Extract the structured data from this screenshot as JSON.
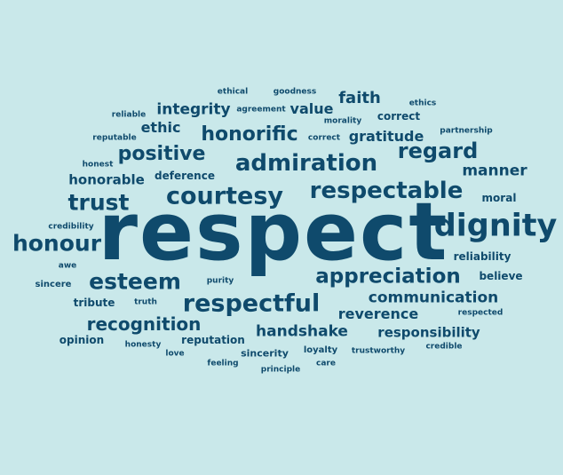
{
  "colors": {
    "background": "#c9e8ea",
    "text": "#0f4a6c"
  },
  "cloud": {
    "w": {
      "respect": "respect",
      "dignity": "dignity",
      "honour": "honour",
      "courtesy": "courtesy",
      "respectable": "respectable",
      "admiration": "admiration",
      "respectful": "respectful",
      "appreciation": "appreciation",
      "esteem": "esteem",
      "trust": "trust",
      "regard": "regard",
      "honorific": "honorific",
      "positive": "positive",
      "recognition": "recognition",
      "integrity": "integrity",
      "faith": "faith",
      "value": "value",
      "manner": "manner",
      "communication": "communication",
      "handshake": "handshake",
      "reverence": "reverence",
      "responsibility": "responsibility",
      "honorable": "honorable",
      "ethic": "ethic",
      "gratitude": "gratitude",
      "deference": "deference",
      "reputation": "reputation",
      "opinion": "opinion",
      "reliability": "reliability",
      "believe": "believe",
      "moral": "moral",
      "correct": "correct",
      "tribute": "tribute",
      "sincerity": "sincerity",
      "loyalty": "loyalty",
      "ethical": "ethical",
      "goodness": "goodness",
      "ethics": "ethics",
      "reliable": "reliable",
      "agreement": "agreement",
      "morality": "morality",
      "correct_small": "correct",
      "partnership": "partnership",
      "reputable": "reputable",
      "honest": "honest",
      "credibility": "credibility",
      "awe": "awe",
      "sincere": "sincere",
      "purity": "purity",
      "truth": "truth",
      "honesty": "honesty",
      "love": "love",
      "feeling": "feeling",
      "principle": "principle",
      "care": "care",
      "trustworthy": "trustworthy",
      "credible": "credible",
      "respected": "respected"
    }
  }
}
